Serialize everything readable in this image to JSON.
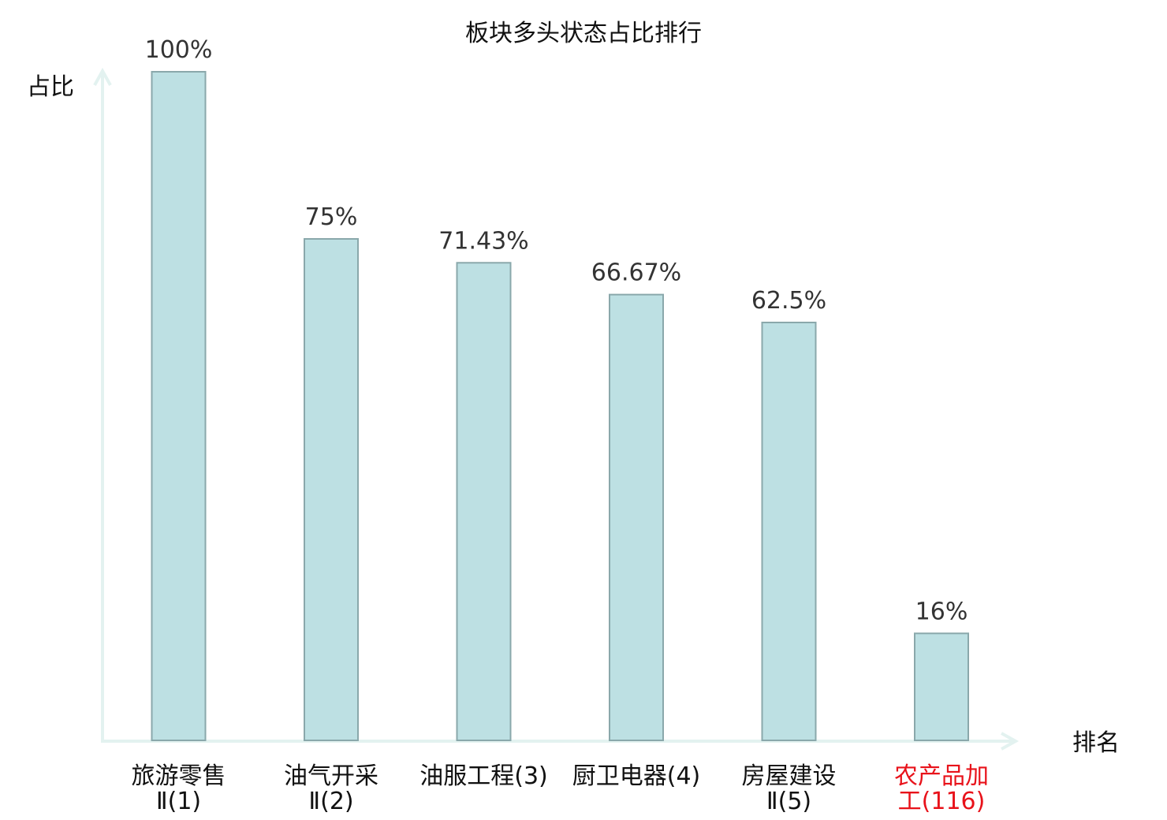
{
  "chart_data": {
    "type": "bar",
    "title": "板块多头状态占比排行",
    "ylabel": "占比",
    "xlabel": "排名",
    "ylim": [
      0,
      100
    ],
    "grid": false,
    "categories": [
      {
        "lines": [
          "旅游零售",
          "Ⅱ(1)"
        ],
        "name": "旅游零售Ⅱ",
        "rank": 1,
        "highlight": false
      },
      {
        "lines": [
          "油气开采",
          "Ⅱ(2)"
        ],
        "name": "油气开采Ⅱ",
        "rank": 2,
        "highlight": false
      },
      {
        "lines": [
          "油服工程(3)"
        ],
        "name": "油服工程",
        "rank": 3,
        "highlight": false
      },
      {
        "lines": [
          "厨卫电器(4)"
        ],
        "name": "厨卫电器",
        "rank": 4,
        "highlight": false
      },
      {
        "lines": [
          "房屋建设",
          "Ⅱ(5)"
        ],
        "name": "房屋建设Ⅱ",
        "rank": 5,
        "highlight": false
      },
      {
        "lines": [
          "农产品加",
          "工(116)"
        ],
        "name": "农产品加工",
        "rank": 116,
        "highlight": true
      }
    ],
    "values": [
      100,
      75,
      71.43,
      66.67,
      62.5,
      16
    ],
    "value_labels": [
      "100%",
      "75%",
      "71.43%",
      "66.67%",
      "62.5%",
      "16%"
    ]
  },
  "colors": {
    "bar_fill": "#bde0e3",
    "bar_stroke": "#8aa8ab",
    "axis": "#e3f2f0",
    "text": "#111111",
    "value_text": "#333333",
    "highlight": "#e8121a",
    "category_suffix": "#333333"
  }
}
